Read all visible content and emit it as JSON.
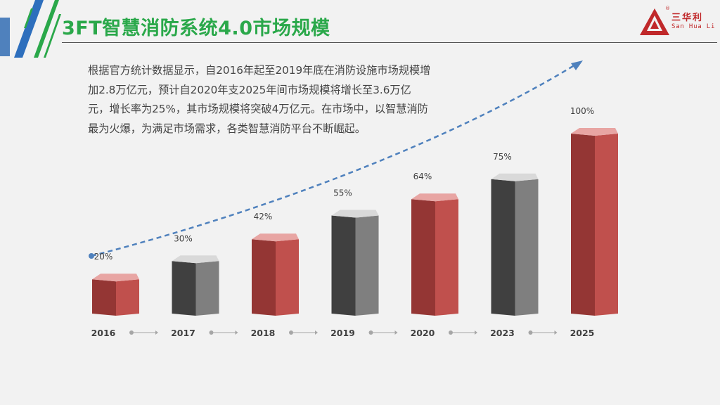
{
  "slide": {
    "title": "3FT智慧消防系统4.0市场规模",
    "body_text": "根据官方统计数据显示，自2016年起至2019年底在消防设施市场规模增加2.8万亿元，预计自2020年支2025年间市场规模将增长至3.6万亿元，增长率为25%，其市场规模将突破4万亿元。在市场中，以智慧消防最为火爆，为满足市场需求，各类智慧消防平台不断崛起。"
  },
  "logo": {
    "name_cn": "三华利",
    "name_en": "San Hua Li",
    "registered": "®",
    "color": "#c0282a"
  },
  "colors": {
    "title_green": "#2aa84a",
    "red_face": "#c0504d",
    "red_side": "#943634",
    "gray_face": "#7f7f7f",
    "gray_side": "#404040",
    "trend_blue": "#4f81bd",
    "accent_blue": "#2e6fbd"
  },
  "chart_data": {
    "type": "bar",
    "style": "3d-columns",
    "categories": [
      "2016",
      "2017",
      "2018",
      "2019",
      "2020",
      "2023",
      "2025"
    ],
    "values": [
      20,
      30,
      42,
      55,
      64,
      75,
      100
    ],
    "value_labels": [
      "20%",
      "30%",
      "42%",
      "55%",
      "64%",
      "75%",
      "100%"
    ],
    "bar_colors": [
      "red",
      "gray",
      "red",
      "gray",
      "red",
      "gray",
      "red"
    ],
    "ylim": [
      0,
      100
    ],
    "grid": false,
    "legend": "none",
    "trend_arrow": "dashed curve rising left to right"
  }
}
